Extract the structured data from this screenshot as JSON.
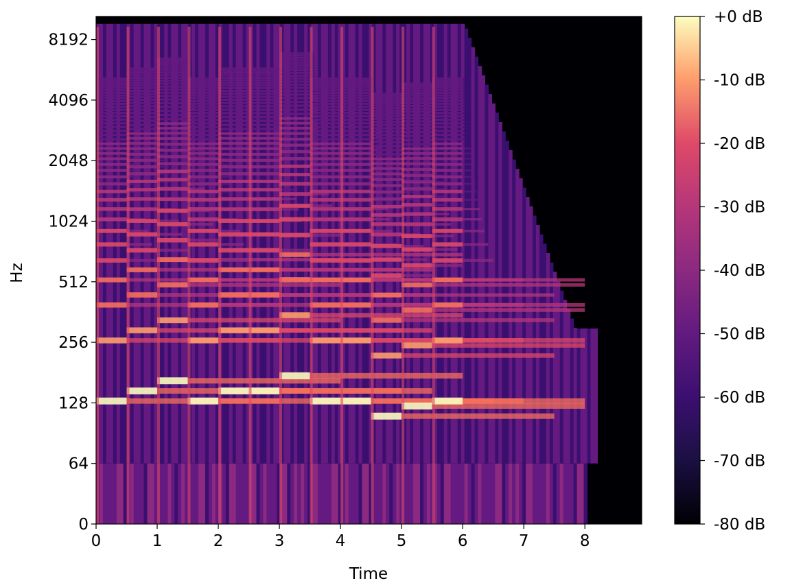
{
  "chart_data": {
    "type": "heatmap",
    "title": "",
    "xlabel": "Time",
    "ylabel": "Hz",
    "x_axis": {
      "range": [
        0,
        8.93
      ],
      "ticks": [
        0,
        1,
        2,
        3,
        4,
        5,
        6,
        7,
        8
      ],
      "tick_labels": [
        "0",
        "1",
        "2",
        "3",
        "4",
        "5",
        "6",
        "7",
        "8"
      ]
    },
    "y_axis": {
      "scale": "log2",
      "ticks": [
        0,
        64,
        128,
        256,
        512,
        1024,
        2048,
        4096,
        8192
      ],
      "tick_labels": [
        "0",
        "64",
        "128",
        "256",
        "512",
        "1024",
        "2048",
        "4096",
        "8192"
      ],
      "range": [
        0,
        11025
      ]
    },
    "colorbar": {
      "colormap": "magma",
      "range_db": [
        -80,
        0
      ],
      "ticks": [
        0,
        -10,
        -20,
        -30,
        -40,
        -50,
        -60,
        -70,
        -80
      ],
      "tick_labels": [
        "+0 dB",
        "-10 dB",
        "-20 dB",
        "-30 dB",
        "-40 dB",
        "-50 dB",
        "-60 dB",
        "-70 dB",
        "-80 dB"
      ]
    },
    "colors": {
      "background": "#000004",
      "low": "#3b0f70",
      "mid": "#b73779",
      "high": "#fc8961",
      "peak": "#fcfdbf"
    },
    "notes_approx": [
      {
        "t": [
          0.0,
          0.5
        ],
        "f0_hz": 130.8
      },
      {
        "t": [
          0.5,
          1.0
        ],
        "f0_hz": 146.8
      },
      {
        "t": [
          1.0,
          1.5
        ],
        "f0_hz": 164.8
      },
      {
        "t": [
          1.5,
          2.0
        ],
        "f0_hz": 130.8
      },
      {
        "t": [
          2.0,
          2.5
        ],
        "f0_hz": 146.8
      },
      {
        "t": [
          2.5,
          3.0
        ],
        "f0_hz": 146.8
      },
      {
        "t": [
          3.0,
          3.5
        ],
        "f0_hz": 174.6
      },
      {
        "t": [
          3.5,
          4.0
        ],
        "f0_hz": 130.8
      },
      {
        "t": [
          4.0,
          4.5
        ],
        "f0_hz": 130.8
      },
      {
        "t": [
          4.5,
          5.0
        ],
        "f0_hz": 110.0
      },
      {
        "t": [
          5.0,
          5.5
        ],
        "f0_hz": 123.5
      },
      {
        "t": [
          5.5,
          6.0
        ],
        "f0_hz": 130.8
      }
    ],
    "decay_time_s": 8.0
  }
}
